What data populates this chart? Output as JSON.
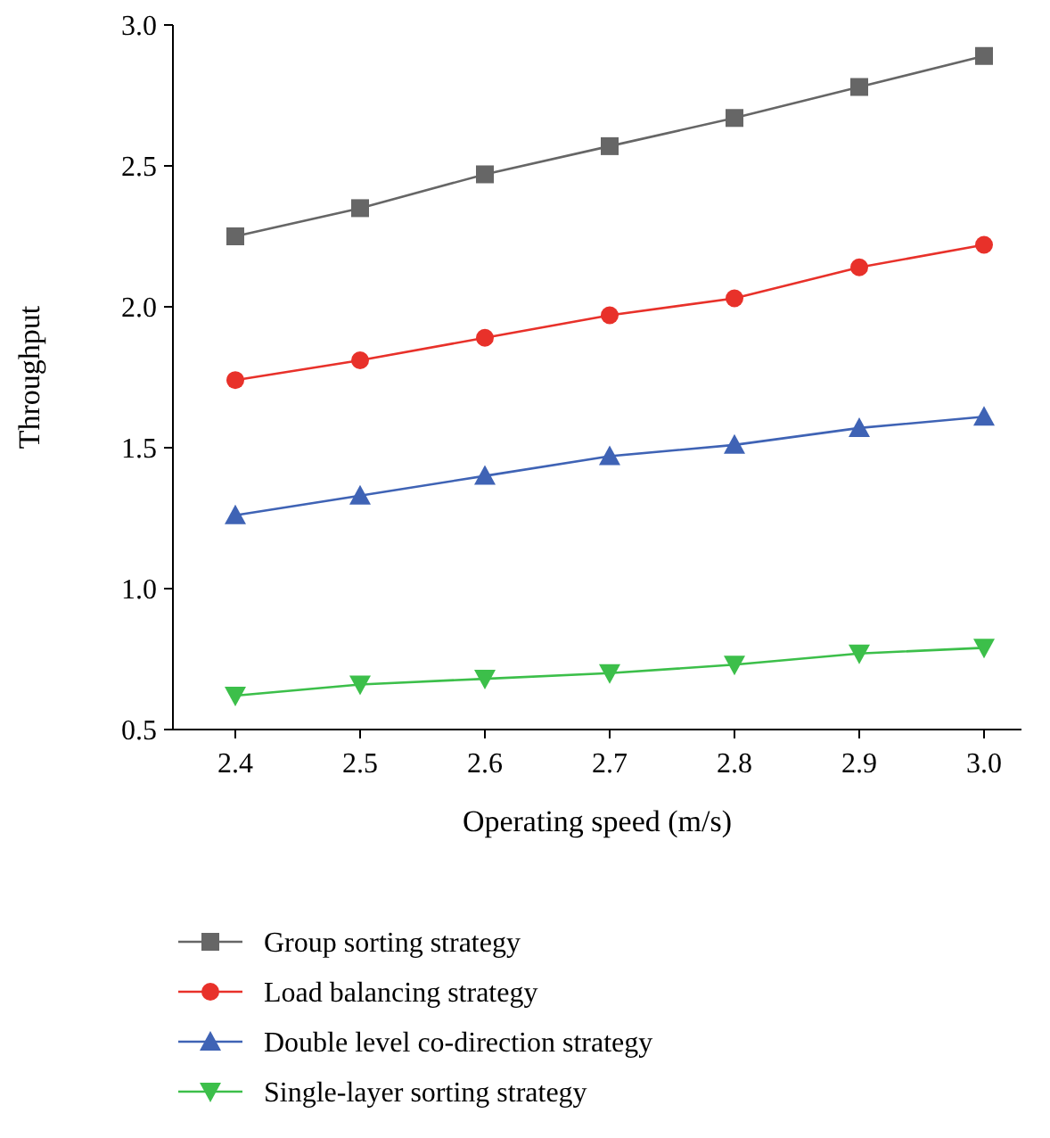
{
  "chart_data": {
    "type": "line",
    "xlabel": "Operating speed (m/s)",
    "ylabel": "Throughput",
    "x": [
      2.4,
      2.5,
      2.6,
      2.7,
      2.8,
      2.9,
      3.0
    ],
    "xlim": [
      2.35,
      3.03
    ],
    "xticks": [
      {
        "value": 2.4,
        "label": "2.4"
      },
      {
        "value": 2.5,
        "label": "2.5"
      },
      {
        "value": 2.6,
        "label": "2.6"
      },
      {
        "value": 2.7,
        "label": "2.7"
      },
      {
        "value": 2.8,
        "label": "2.8"
      },
      {
        "value": 2.9,
        "label": "2.9"
      },
      {
        "value": 3.0,
        "label": "3.0"
      }
    ],
    "ylim": [
      0.5,
      3.0
    ],
    "yticks": [
      {
        "value": 0.5,
        "label": "0.5"
      },
      {
        "value": 1.0,
        "label": "1.0"
      },
      {
        "value": 1.5,
        "label": "1.5"
      },
      {
        "value": 2.0,
        "label": "2.0"
      },
      {
        "value": 2.5,
        "label": "2.5"
      },
      {
        "value": 3.0,
        "label": "3.0"
      }
    ],
    "legend": "bottom",
    "grid": false,
    "series": [
      {
        "name": "Group sorting strategy",
        "color": "#666666",
        "marker": "square",
        "values": [
          2.25,
          2.35,
          2.47,
          2.57,
          2.67,
          2.78,
          2.89
        ]
      },
      {
        "name": "Load balancing strategy",
        "color": "#e8312a",
        "marker": "circle",
        "values": [
          1.74,
          1.81,
          1.89,
          1.97,
          2.03,
          2.14,
          2.22
        ]
      },
      {
        "name": "Double level co-direction strategy",
        "color": "#3f63b5",
        "marker": "triangle",
        "values": [
          1.26,
          1.33,
          1.4,
          1.47,
          1.51,
          1.57,
          1.61
        ]
      },
      {
        "name": "Single-layer sorting strategy",
        "color": "#3cbf4a",
        "marker": "triangle-down",
        "values": [
          0.62,
          0.66,
          0.68,
          0.7,
          0.73,
          0.77,
          0.79
        ]
      }
    ]
  }
}
